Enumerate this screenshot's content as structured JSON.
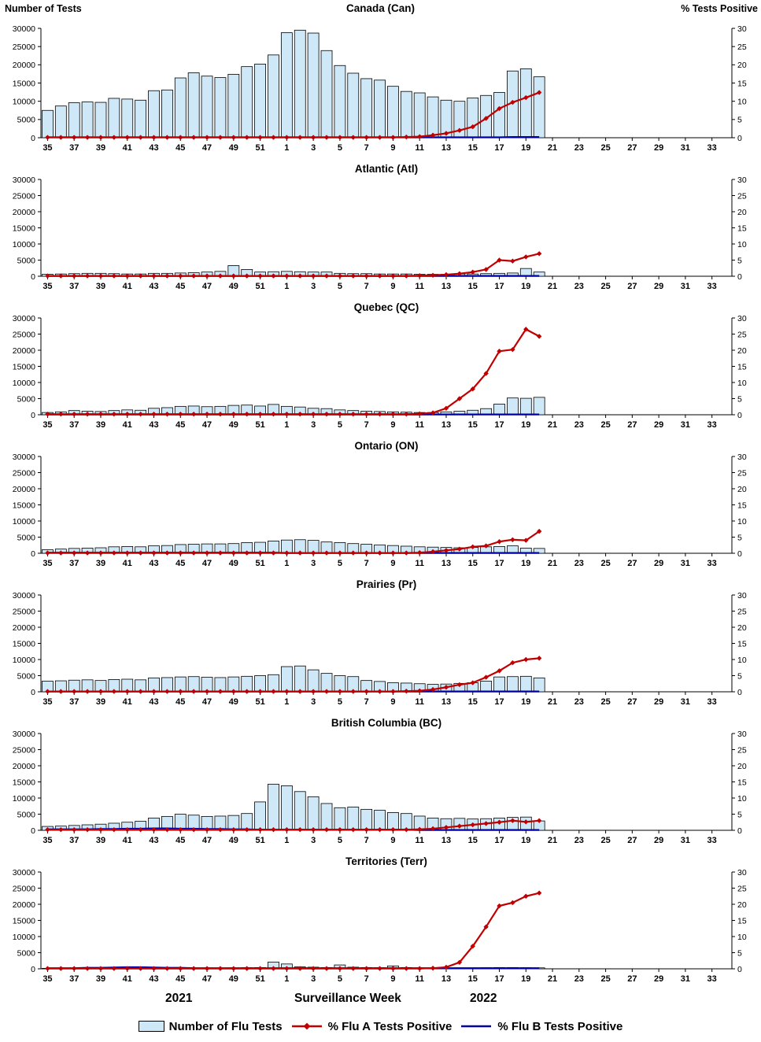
{
  "header": {
    "note": ""
  },
  "footer": {
    "year_left": "2021",
    "axis_label": "Surveillance Week",
    "year_right": "2022"
  },
  "legend": [
    {
      "type": "bar",
      "label": "Number of Flu Tests",
      "color": "#cfe8f8"
    },
    {
      "type": "line-diamond",
      "label": "% Flu A Tests Positive",
      "color": "#c00000"
    },
    {
      "type": "line",
      "label": "% Flu B Tests Positive",
      "color": "#0000a0"
    }
  ],
  "chart_data": {
    "type": "bar",
    "left_axis": {
      "title": "Number of Tests",
      "min": 0,
      "max": 30000,
      "step": 5000
    },
    "right_axis": {
      "title": "% Tests Positive",
      "min": 0,
      "max": 30,
      "step": 5
    },
    "x_axis": {
      "label": "Surveillance Week",
      "tick_step": 2
    },
    "x_weeks": [
      35,
      36,
      37,
      38,
      39,
      40,
      41,
      42,
      43,
      44,
      45,
      46,
      47,
      48,
      49,
      50,
      51,
      52,
      1,
      2,
      3,
      4,
      5,
      6,
      7,
      8,
      9,
      10,
      11,
      12,
      13,
      14,
      15,
      16,
      17,
      18,
      19,
      20,
      21,
      22,
      23,
      24,
      25,
      26,
      27,
      28,
      29,
      30,
      31,
      32,
      33,
      34
    ],
    "colors": {
      "bar_fill": "#cfe8f8",
      "bar_stroke": "#000000",
      "flu_a": "#c00000",
      "flu_b": "#0000a0",
      "axis": "#000000"
    },
    "panels": [
      {
        "title": "Canada (Can)",
        "tests": [
          7500,
          8700,
          9600,
          9800,
          9700,
          10800,
          10600,
          10300,
          12900,
          13100,
          16400,
          17800,
          16900,
          16500,
          17400,
          19500,
          20200,
          22700,
          28800,
          29500,
          28700,
          23900,
          19800,
          17700,
          16200,
          15800,
          14100,
          12700,
          12300,
          11200,
          10300,
          10000,
          10900,
          11600,
          12400,
          18300,
          18900,
          16700
        ],
        "flu_a_pct": [
          0.1,
          0.1,
          0.1,
          0.1,
          0.1,
          0.1,
          0.1,
          0.1,
          0.1,
          0.1,
          0.1,
          0.1,
          0.1,
          0.1,
          0.1,
          0.1,
          0.1,
          0.1,
          0.1,
          0.1,
          0.1,
          0.1,
          0.1,
          0.1,
          0.1,
          0.1,
          0.1,
          0.2,
          0.3,
          0.7,
          1.2,
          2.0,
          3.0,
          5.3,
          8.0,
          9.7,
          11.0,
          12.4
        ],
        "flu_b_pct": [
          0.1,
          0.1,
          0.1,
          0.1,
          0.1,
          0.1,
          0.1,
          0.1,
          0.1,
          0.1,
          0.1,
          0.1,
          0.1,
          0.1,
          0.1,
          0.1,
          0.1,
          0.1,
          0.1,
          0.1,
          0.1,
          0.1,
          0.1,
          0.1,
          0.1,
          0.1,
          0.1,
          0.1,
          0.1,
          0.1,
          0.1,
          0.1,
          0.1,
          0.1,
          0.1,
          0.2,
          0.2,
          0.2
        ]
      },
      {
        "title": "Atlantic (Atl)",
        "tests": [
          600,
          700,
          800,
          900,
          900,
          800,
          700,
          700,
          900,
          900,
          1000,
          1100,
          1300,
          1500,
          3300,
          2100,
          1300,
          1400,
          1500,
          1400,
          1300,
          1300,
          900,
          800,
          800,
          700,
          700,
          700,
          600,
          600,
          600,
          700,
          700,
          800,
          900,
          1000,
          2400,
          1300
        ],
        "flu_a_pct": [
          0.1,
          0.1,
          0.1,
          0.1,
          0.1,
          0.1,
          0.1,
          0.1,
          0.1,
          0.1,
          0.1,
          0.1,
          0.1,
          0.1,
          0.1,
          0.1,
          0.1,
          0.1,
          0.1,
          0.1,
          0.1,
          0.1,
          0.1,
          0.1,
          0.1,
          0.1,
          0.1,
          0.1,
          0.2,
          0.3,
          0.5,
          0.8,
          1.3,
          2.1,
          5.0,
          4.7,
          6.0,
          7.0
        ],
        "flu_b_pct": [
          0.1,
          0.1,
          0.1,
          0.1,
          0.1,
          0.1,
          0.1,
          0.1,
          0.1,
          0.1,
          0.1,
          0.1,
          0.1,
          0.1,
          0.1,
          0.1,
          0.1,
          0.1,
          0.1,
          0.1,
          0.1,
          0.1,
          0.1,
          0.1,
          0.1,
          0.1,
          0.1,
          0.1,
          0.1,
          0.1,
          0.1,
          0.1,
          0.1,
          0.1,
          0.1,
          0.1,
          0.1,
          0.1
        ]
      },
      {
        "title": "Quebec (QC)",
        "tests": [
          700,
          900,
          1300,
          1100,
          1000,
          1300,
          1500,
          1400,
          2000,
          2200,
          2600,
          2700,
          2500,
          2600,
          2900,
          3000,
          2700,
          3200,
          2600,
          2400,
          2000,
          1900,
          1500,
          1300,
          1100,
          1000,
          900,
          800,
          700,
          700,
          900,
          1100,
          1400,
          1900,
          3300,
          5200,
          5100,
          5400
        ],
        "flu_a_pct": [
          0.2,
          0.2,
          0.2,
          0.2,
          0.2,
          0.2,
          0.2,
          0.2,
          0.2,
          0.2,
          0.2,
          0.2,
          0.2,
          0.2,
          0.2,
          0.2,
          0.2,
          0.2,
          0.2,
          0.2,
          0.2,
          0.2,
          0.2,
          0.2,
          0.2,
          0.2,
          0.2,
          0.2,
          0.3,
          0.6,
          2.0,
          5.0,
          8.0,
          12.8,
          19.7,
          20.2,
          26.5,
          24.3
        ],
        "flu_b_pct": [
          0.1,
          0.1,
          0.1,
          0.1,
          0.1,
          0.1,
          0.1,
          0.1,
          0.1,
          0.1,
          0.1,
          0.1,
          0.1,
          0.1,
          0.1,
          0.1,
          0.1,
          0.1,
          0.1,
          0.1,
          0.1,
          0.1,
          0.1,
          0.1,
          0.1,
          0.1,
          0.1,
          0.1,
          0.1,
          0.1,
          0.1,
          0.1,
          0.1,
          0.1,
          0.1,
          0.1,
          0.1,
          0.1
        ]
      },
      {
        "title": "Ontario (ON)",
        "tests": [
          1100,
          1300,
          1500,
          1600,
          1700,
          2000,
          2100,
          2000,
          2300,
          2400,
          2700,
          2800,
          2900,
          2900,
          3000,
          3300,
          3400,
          3800,
          4100,
          4200,
          4000,
          3500,
          3300,
          3000,
          2800,
          2600,
          2400,
          2200,
          2000,
          1900,
          1800,
          1700,
          1800,
          2000,
          2100,
          2300,
          1600,
          1500
        ],
        "flu_a_pct": [
          0.1,
          0.1,
          0.1,
          0.1,
          0.1,
          0.1,
          0.1,
          0.1,
          0.1,
          0.1,
          0.1,
          0.1,
          0.1,
          0.1,
          0.1,
          0.1,
          0.1,
          0.1,
          0.1,
          0.1,
          0.1,
          0.1,
          0.1,
          0.1,
          0.1,
          0.1,
          0.1,
          0.1,
          0.2,
          0.5,
          0.9,
          1.3,
          2.0,
          2.3,
          3.6,
          4.2,
          4.0,
          6.8
        ],
        "flu_b_pct": [
          0.2,
          0.2,
          0.2,
          0.2,
          0.2,
          0.2,
          0.2,
          0.2,
          0.2,
          0.2,
          0.2,
          0.2,
          0.2,
          0.2,
          0.2,
          0.2,
          0.2,
          0.2,
          0.1,
          0.1,
          0.1,
          0.1,
          0.1,
          0.1,
          0.1,
          0.1,
          0.1,
          0.1,
          0.1,
          0.1,
          0.1,
          0.1,
          0.1,
          0.1,
          0.1,
          0.1,
          0.1,
          0.1
        ]
      },
      {
        "title": "Prairies (Pr)",
        "tests": [
          3300,
          3400,
          3600,
          3700,
          3500,
          3800,
          3900,
          3700,
          4300,
          4400,
          4600,
          4700,
          4500,
          4400,
          4600,
          4800,
          5000,
          5300,
          7800,
          8000,
          6800,
          5700,
          5000,
          4700,
          3500,
          3200,
          2800,
          2700,
          2500,
          2300,
          2400,
          2600,
          2800,
          3300,
          4600,
          4700,
          4800,
          4300
        ],
        "flu_a_pct": [
          0.1,
          0.1,
          0.1,
          0.1,
          0.1,
          0.1,
          0.1,
          0.1,
          0.1,
          0.1,
          0.1,
          0.1,
          0.1,
          0.1,
          0.1,
          0.1,
          0.1,
          0.1,
          0.1,
          0.1,
          0.1,
          0.1,
          0.1,
          0.1,
          0.1,
          0.1,
          0.1,
          0.2,
          0.3,
          0.7,
          1.4,
          2.2,
          2.8,
          4.5,
          6.5,
          9.0,
          10.0,
          10.4
        ],
        "flu_b_pct": [
          0.1,
          0.1,
          0.1,
          0.1,
          0.1,
          0.1,
          0.1,
          0.1,
          0.1,
          0.1,
          0.1,
          0.1,
          0.1,
          0.1,
          0.1,
          0.1,
          0.1,
          0.1,
          0.1,
          0.1,
          0.1,
          0.1,
          0.1,
          0.1,
          0.1,
          0.1,
          0.1,
          0.1,
          0.1,
          0.1,
          0.1,
          0.1,
          0.1,
          0.1,
          0.1,
          0.1,
          0.1,
          0.1
        ]
      },
      {
        "title": "British Columbia (BC)",
        "tests": [
          1200,
          1300,
          1500,
          1700,
          1900,
          2200,
          2500,
          2800,
          3800,
          4300,
          5000,
          4700,
          4300,
          4400,
          4600,
          5200,
          8800,
          14300,
          13800,
          12000,
          10400,
          8300,
          7000,
          7200,
          6500,
          6200,
          5500,
          5200,
          4400,
          3800,
          3600,
          3700,
          3500,
          3600,
          3800,
          4000,
          4100,
          2900
        ],
        "flu_a_pct": [
          0.2,
          0.2,
          0.2,
          0.2,
          0.2,
          0.2,
          0.2,
          0.2,
          0.2,
          0.2,
          0.2,
          0.2,
          0.2,
          0.2,
          0.2,
          0.2,
          0.2,
          0.2,
          0.2,
          0.2,
          0.2,
          0.2,
          0.2,
          0.2,
          0.2,
          0.2,
          0.2,
          0.2,
          0.3,
          0.5,
          0.9,
          1.3,
          1.7,
          2.1,
          2.5,
          3.0,
          2.6,
          3.0
        ],
        "flu_b_pct": [
          0.3,
          0.3,
          0.3,
          0.3,
          0.4,
          0.4,
          0.5,
          0.5,
          0.6,
          0.6,
          0.5,
          0.5,
          0.4,
          0.4,
          0.3,
          0.3,
          0.2,
          0.2,
          0.2,
          0.2,
          0.2,
          0.2,
          0.2,
          0.2,
          0.2,
          0.2,
          0.2,
          0.2,
          0.1,
          0.1,
          0.1,
          0.1,
          0.1,
          0.1,
          0.1,
          0.1,
          0.1,
          0.1
        ]
      },
      {
        "title": "Territories (Terr)",
        "tests": [
          150,
          150,
          200,
          200,
          250,
          300,
          350,
          300,
          350,
          300,
          350,
          300,
          300,
          250,
          300,
          350,
          400,
          2100,
          1500,
          600,
          500,
          400,
          1200,
          500,
          400,
          350,
          900,
          400,
          300,
          250,
          250,
          300,
          300,
          350,
          400,
          400,
          350,
          300
        ],
        "flu_a_pct": [
          0.1,
          0.1,
          0.1,
          0.1,
          0.1,
          0.1,
          0.1,
          0.1,
          0.1,
          0.1,
          0.1,
          0.1,
          0.1,
          0.1,
          0.1,
          0.1,
          0.1,
          0.1,
          0.1,
          0.1,
          0.1,
          0.1,
          0.1,
          0.1,
          0.1,
          0.1,
          0.1,
          0.1,
          0.1,
          0.2,
          0.5,
          2.0,
          7.0,
          13.0,
          19.5,
          20.5,
          22.5,
          23.5
        ],
        "flu_b_pct": [
          0.2,
          0.2,
          0.2,
          0.3,
          0.3,
          0.4,
          0.5,
          0.5,
          0.4,
          0.3,
          0.3,
          0.2,
          0.2,
          0.2,
          0.2,
          0.2,
          0.2,
          0.2,
          0.2,
          0.2,
          0.2,
          0.2,
          0.2,
          0.2,
          0.2,
          0.2,
          0.2,
          0.2,
          0.2,
          0.2,
          0.2,
          0.2,
          0.2,
          0.2,
          0.2,
          0.2,
          0.2,
          0.2
        ]
      }
    ]
  }
}
